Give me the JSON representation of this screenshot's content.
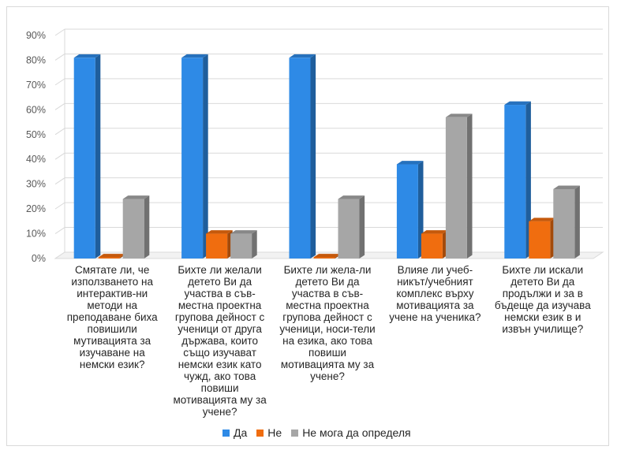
{
  "chart_data": {
    "type": "bar",
    "title": "",
    "xlabel": "",
    "ylabel": "",
    "ylim": [
      0,
      90
    ],
    "y_ticks": [
      "0%",
      "10%",
      "20%",
      "30%",
      "40%",
      "50%",
      "60%",
      "70%",
      "80%",
      "90%"
    ],
    "grid": true,
    "style": "3d-columns",
    "legend_position": "bottom",
    "categories": [
      "Смятате ли, че използването на интерактив-ни методи на преподаване биха повишили мутивацията за изучаване на немски език?",
      "Бихте ли желали детето Ви да участва в съв-местна проектна групова дейност с ученици от друга държава, които също изучават немски език като чужд, ако това повиши мотивацията му за учене?",
      "Бихте ли жела-ли детето Ви да участва в съв-местна проектна групова дейност с ученици, носи-тели на езика, ако това повиши мотивацията му за учене?",
      "Влияе ли учеб-никът/учебният комплекс върху мотивацията за учене на ученика?",
      "Бихте ли искали детето Ви да продължи и за в бъдеще да изучава немски език в и извън училище?"
    ],
    "series": [
      {
        "name": "Да",
        "color": "#2e8ae6",
        "values": [
          81,
          81,
          81,
          38,
          62
        ]
      },
      {
        "name": "Не",
        "color": "#f06d0f",
        "values": [
          0,
          10,
          0,
          10,
          15
        ]
      },
      {
        "name": "Не мога да определя",
        "color": "#a6a6a6",
        "values": [
          24,
          10,
          24,
          57,
          28
        ]
      }
    ]
  }
}
